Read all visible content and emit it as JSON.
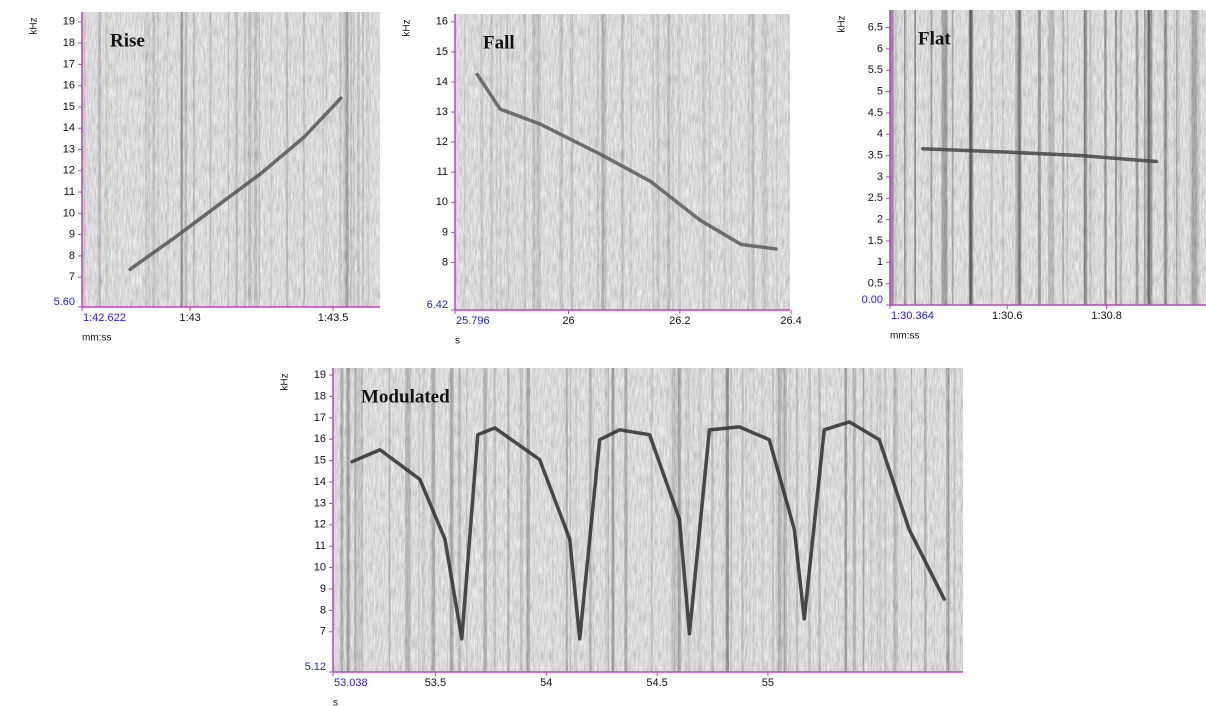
{
  "chart_data": [
    {
      "type": "spectrogram",
      "title": "Rise",
      "y_label": "kHz",
      "x_label": "mm:ss",
      "xlim": [
        102.622,
        103.664
      ],
      "ylim": [
        5.6,
        19.46
      ],
      "xticks": [
        {
          "value": 102.622,
          "label": "1:42.622"
        },
        {
          "value": 103,
          "label": "1:43"
        },
        {
          "value": 103.5,
          "label": "1:43.5"
        }
      ],
      "yticks": [
        {
          "value": 5.6,
          "label": "5.60"
        },
        7,
        8,
        9,
        10,
        11,
        12,
        13,
        14,
        15,
        16,
        17,
        18,
        19
      ],
      "series": [
        {
          "color": "#555555",
          "x": [
            102.79,
            102.95,
            103.1,
            103.25,
            103.4,
            103.527
          ],
          "values": [
            7.37,
            8.9,
            10.4,
            11.9,
            13.6,
            15.41
          ]
        }
      ]
    },
    {
      "type": "spectrogram",
      "title": "Fall",
      "y_label": "kHz",
      "x_label": "s",
      "xlim": [
        25.796,
        26.398
      ],
      "ylim": [
        6.42,
        16.26
      ],
      "xticks": [
        25.796,
        26,
        26.2,
        26.4
      ],
      "yticks": [
        6.42,
        8,
        9,
        10,
        11,
        12,
        13,
        14,
        15,
        16
      ],
      "series": [
        {
          "color": "#5a5a5a",
          "x": [
            25.836,
            25.877,
            25.949,
            26.057,
            26.147,
            26.237,
            26.31,
            26.373
          ],
          "values": [
            14.25,
            13.1,
            12.6,
            11.6,
            10.7,
            9.4,
            8.6,
            8.45
          ]
        }
      ]
    },
    {
      "type": "spectrogram",
      "title": "Flat",
      "y_label": "kHz",
      "x_label": "mm:ss",
      "xlim": [
        90.364,
        91.0
      ],
      "ylim": [
        0,
        6.91
      ],
      "xticks": [
        {
          "value": 90.364,
          "label": "1:30.364"
        },
        {
          "value": 90.6,
          "label": "1:30.6"
        },
        {
          "value": 90.8,
          "label": "1:30.8"
        }
      ],
      "yticks": [
        {
          "value": 0,
          "label": "0.00"
        },
        0.5,
        1,
        1.5,
        2,
        2.5,
        3,
        3.5,
        4,
        4.5,
        5,
        5.5,
        6,
        6.5
      ],
      "series": [
        {
          "color": "#444444",
          "x": [
            90.43,
            90.6,
            90.75,
            90.9
          ],
          "values": [
            3.66,
            3.58,
            3.5,
            3.36
          ]
        }
      ]
    },
    {
      "type": "spectrogram",
      "title": "Modulated",
      "y_label": "kHz",
      "x_label": "s",
      "xlim": [
        53.038,
        55.88
      ],
      "ylim": [
        5.12,
        19.33
      ],
      "xticks": [
        53.038,
        53.5,
        54,
        54.5,
        55
      ],
      "yticks": [
        5.12,
        7,
        8,
        9,
        10,
        11,
        12,
        13,
        14,
        15,
        16,
        17,
        18,
        19
      ],
      "series": [
        {
          "color": "#2e2e2e",
          "x": [
            53.124,
            53.25,
            53.43,
            53.543,
            53.619,
            53.691,
            53.768,
            53.97,
            54.106,
            54.151,
            54.241,
            54.331,
            54.466,
            54.601,
            54.646,
            54.736,
            54.871,
            55.006,
            55.119,
            55.164,
            55.254,
            55.367,
            55.502,
            55.637,
            55.795
          ],
          "values": [
            14.95,
            15.51,
            14.12,
            11.33,
            6.67,
            16.21,
            16.53,
            15.05,
            11.33,
            6.67,
            15.98,
            16.44,
            16.21,
            12.26,
            6.91,
            16.44,
            16.58,
            15.98,
            11.79,
            7.6,
            16.44,
            16.81,
            15.98,
            11.79,
            8.53
          ]
        }
      ]
    }
  ]
}
